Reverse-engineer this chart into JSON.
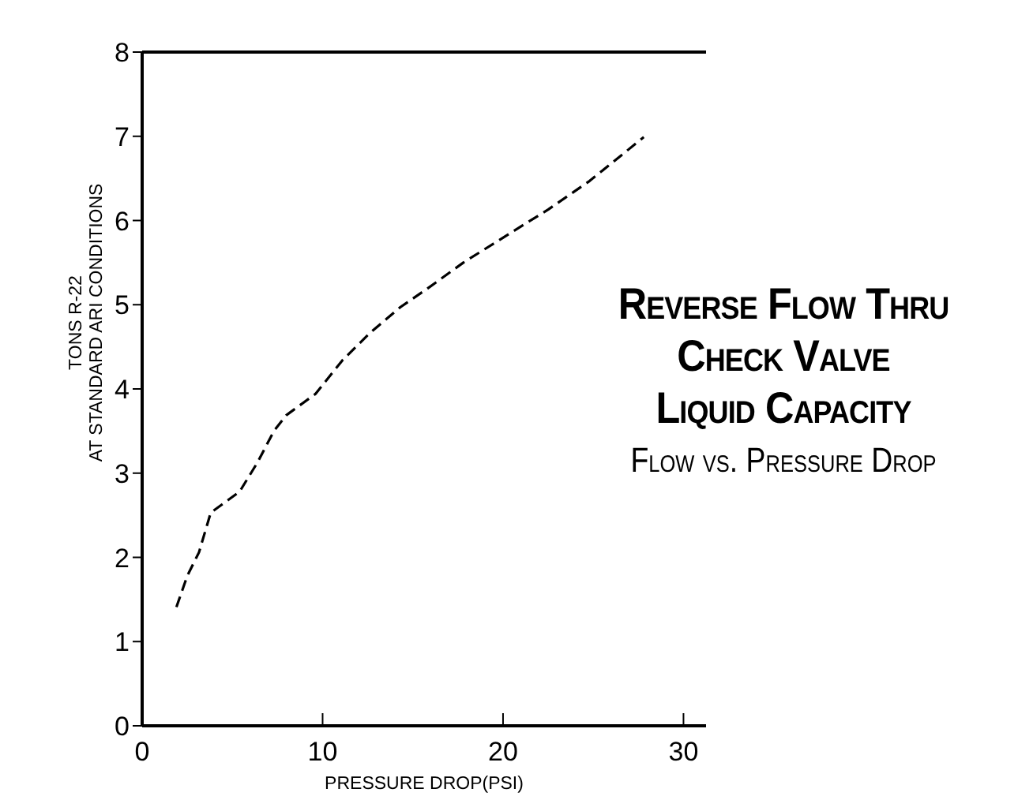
{
  "chart_data": {
    "type": "line",
    "title": "Reverse Flow Thru\nCheck Valve\nLiquid Capacity",
    "subtitle": "Flow vs. Pressure Drop",
    "xlabel": "PRESSURE DROP(PSI)",
    "ylabel": "TONS R-22\nAT STANDARD ARI CONDITIONS",
    "series": [
      {
        "color": "#000000",
        "line_style": "dashed",
        "marker": "none",
        "x": [
          1.9,
          2.5,
          3.15,
          3.8,
          5.4,
          6.4,
          7.3,
          8.0,
          9.6,
          11.1,
          12.6,
          14.3,
          15.8,
          17.8,
          20.1,
          22.5,
          24.8,
          27.8
        ],
        "values": [
          1.41,
          1.78,
          2.06,
          2.53,
          2.78,
          3.13,
          3.5,
          3.69,
          3.94,
          4.34,
          4.66,
          4.97,
          5.19,
          5.5,
          5.81,
          6.13,
          6.47,
          6.99
        ]
      }
    ],
    "xlim": [
      0,
      31.25
    ],
    "xticks": [
      0,
      10,
      20,
      30
    ],
    "ylim": [
      0,
      8
    ],
    "yticks": [
      0,
      1,
      2,
      3,
      4,
      5,
      6,
      7,
      8
    ],
    "grid": false
  }
}
